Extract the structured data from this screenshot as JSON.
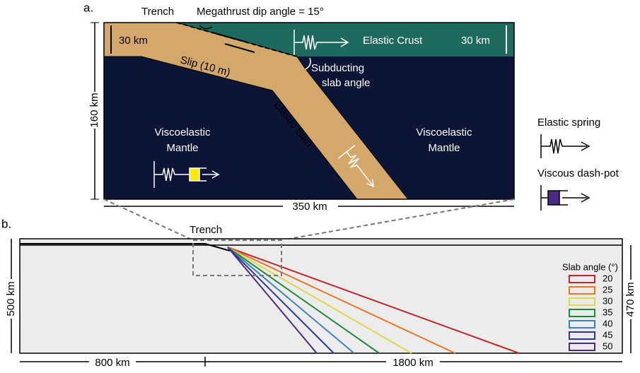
{
  "panel_a": {
    "label": "a.",
    "trench": "Trench",
    "dip_angle": "Megathrust dip angle = 15°",
    "crust_thickness_left": "30 km",
    "crust_thickness_right": "30 km",
    "elastic_crust": "Elastic Crust",
    "slip": "Slip (10 m)",
    "subducting_angle": [
      "Subducting",
      "slab angle"
    ],
    "elastic_slab": "Elastic Slab",
    "mantle_left": [
      "Viscoelastic",
      "Mantle"
    ],
    "mantle_right": [
      "Viscoelastic",
      "Mantle"
    ],
    "depth": "160 km",
    "width": "350 km"
  },
  "legend": {
    "spring": "Elastic spring",
    "dashpot": "Viscous dash-pot"
  },
  "panel_b": {
    "label": "b.",
    "trench": "Trench",
    "left_depth": "500 km",
    "right_depth": "470 km",
    "left_width": "800 km",
    "right_width": "1800 km",
    "slab_legend": {
      "title": "Slab angle (°)",
      "entries": [
        {
          "angle": 20,
          "color": "#c1272d"
        },
        {
          "angle": 25,
          "color": "#e87722"
        },
        {
          "angle": 30,
          "color": "#dcd94e"
        },
        {
          "angle": 35,
          "color": "#1b8a3a"
        },
        {
          "angle": 40,
          "color": "#3f7fbf"
        },
        {
          "angle": 45,
          "color": "#2b3990"
        },
        {
          "angle": 50,
          "color": "#4b2a86"
        }
      ]
    }
  }
}
